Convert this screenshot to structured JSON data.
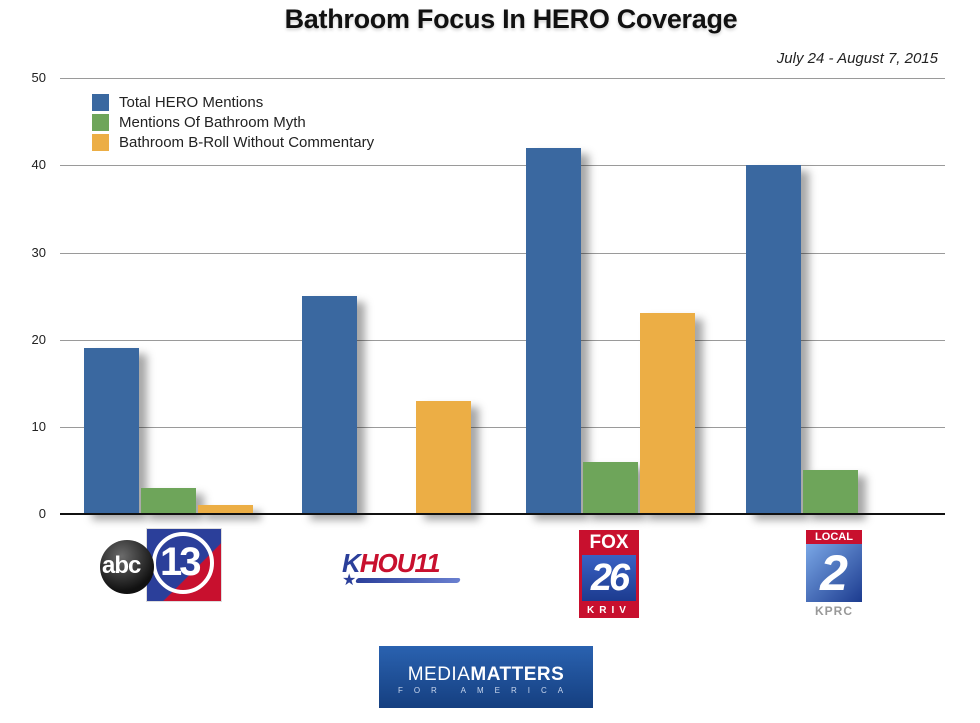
{
  "title": "Bathroom Focus In HERO Coverage",
  "subtitle": "July 24 - August 7, 2015",
  "y_ticks": [
    "50",
    "40",
    "30",
    "20",
    "10",
    "0"
  ],
  "legend": [
    {
      "label": "Total HERO Mentions",
      "color": "#3a68a0"
    },
    {
      "label": "Mentions Of Bathroom Myth",
      "color": "#6ea55a"
    },
    {
      "label": "Bathroom B-Roll Without Commentary",
      "color": "#ecae45"
    }
  ],
  "logos": {
    "abc13": {
      "abc": "abc",
      "num": "13"
    },
    "khou": {
      "k": "K",
      "rest": "HOU11"
    },
    "fox26": {
      "fox": "FOX",
      "num": "26",
      "call": "KRIV"
    },
    "kprc": {
      "local": "LOCAL",
      "num": "2",
      "call": "KPRC"
    },
    "mediamatters": {
      "media": "MEDIA",
      "matters": "MATTERS",
      "tag": "FOR AMERICA"
    }
  },
  "chart_data": {
    "type": "bar",
    "title": "Bathroom Focus In HERO Coverage",
    "subtitle": "July 24 - August 7, 2015",
    "categories": [
      "ABC13",
      "KHOU 11",
      "FOX 26 KRIV",
      "Local 2 KPRC"
    ],
    "series": [
      {
        "name": "Total HERO Mentions",
        "color": "#3a68a0",
        "values": [
          19,
          25,
          42,
          40
        ]
      },
      {
        "name": "Mentions Of Bathroom Myth",
        "color": "#6ea55a",
        "values": [
          3,
          0,
          6,
          5
        ]
      },
      {
        "name": "Bathroom B-Roll Without Commentary",
        "color": "#ecae45",
        "values": [
          1,
          13,
          23,
          0
        ]
      }
    ],
    "xlabel": "",
    "ylabel": "",
    "ylim": [
      0,
      50
    ],
    "yticks": [
      0,
      10,
      20,
      30,
      40,
      50
    ],
    "grid": true,
    "legend_position": "top-left"
  }
}
